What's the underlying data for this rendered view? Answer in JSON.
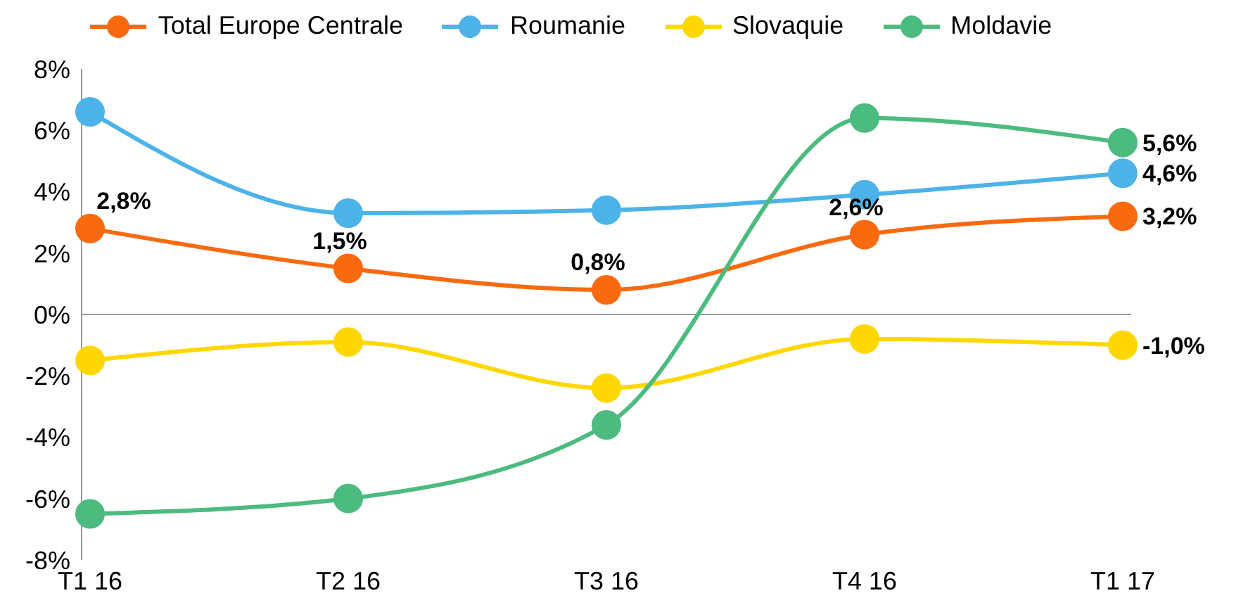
{
  "chart_data": {
    "type": "line",
    "categories": [
      "T1 16",
      "T2 16",
      "T3 16",
      "T4 16",
      "T1 17"
    ],
    "series": [
      {
        "name": "Total Europe Centrale",
        "color": "#f96a10",
        "values": [
          2.8,
          1.5,
          0.8,
          2.6,
          3.2
        ],
        "value_labels": [
          "2,8%",
          "1,5%",
          "0,8%",
          "2,6%",
          "3,2%"
        ]
      },
      {
        "name": "Roumanie",
        "color": "#4cb3e8",
        "values": [
          6.6,
          3.3,
          3.4,
          3.9,
          4.6
        ],
        "value_labels": [
          null,
          null,
          null,
          null,
          "4,6%"
        ]
      },
      {
        "name": "Slovaquie",
        "color": "#ffd700",
        "values": [
          -1.5,
          -0.9,
          -2.4,
          -0.8,
          -1.0
        ],
        "value_labels": [
          null,
          null,
          null,
          null,
          "-1,0%"
        ]
      },
      {
        "name": "Moldavie",
        "color": "#4cbb7f",
        "values": [
          -6.5,
          -6.0,
          -3.6,
          6.4,
          5.6
        ],
        "value_labels": [
          null,
          null,
          null,
          null,
          "5,6%"
        ]
      }
    ],
    "ylim": [
      -8,
      8
    ],
    "yticks": [
      {
        "value": -8,
        "label": "-8%"
      },
      {
        "value": -6,
        "label": "-6%"
      },
      {
        "value": -4,
        "label": "-4%"
      },
      {
        "value": -2,
        "label": "-2%"
      },
      {
        "value": 0,
        "label": "0%"
      },
      {
        "value": 2,
        "label": "2%"
      },
      {
        "value": 4,
        "label": "4%"
      },
      {
        "value": 6,
        "label": "6%"
      },
      {
        "value": 8,
        "label": "8%"
      }
    ],
    "ref_lines": [
      {
        "axis": "y",
        "value": 0
      }
    ],
    "grid": false,
    "legend": "top",
    "marker": "circle",
    "line_style": "solid"
  }
}
